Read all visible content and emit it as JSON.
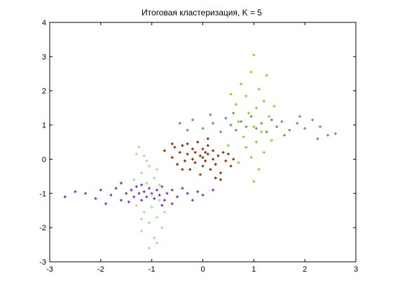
{
  "chart_data": {
    "type": "scatter",
    "title": "Итоговая кластеризация, K = 5",
    "xlabel": "",
    "ylabel": "",
    "xlim": [
      -3,
      3
    ],
    "ylim": [
      -3,
      4
    ],
    "xticks": [
      "-3",
      "-2",
      "-1",
      "0",
      "1",
      "2",
      "3"
    ],
    "yticks": [
      "-3",
      "-2",
      "-1",
      "0",
      "1",
      "2",
      "3",
      "4"
    ],
    "grid": false,
    "legend": "none",
    "marker": "diamond",
    "series": [
      {
        "color": "#8B3A0F",
        "center": [
          0,
          0
        ],
        "points": [
          [
            -0.75,
            0.25
          ],
          [
            -0.6,
            0.05
          ],
          [
            -0.55,
            0.35
          ],
          [
            -0.5,
            -0.15
          ],
          [
            -0.45,
            0.2
          ],
          [
            -0.4,
            0.4
          ],
          [
            -0.35,
            -0.05
          ],
          [
            -0.3,
            0.15
          ],
          [
            -0.3,
            0.45
          ],
          [
            -0.25,
            -0.3
          ],
          [
            -0.2,
            0.0
          ],
          [
            -0.2,
            0.3
          ],
          [
            -0.15,
            -0.1
          ],
          [
            -0.15,
            0.2
          ],
          [
            -0.1,
            0.5
          ],
          [
            -0.05,
            0.1
          ],
          [
            0.0,
            -0.2
          ],
          [
            0.0,
            0.05
          ],
          [
            0.0,
            0.3
          ],
          [
            0.05,
            -0.05
          ],
          [
            0.1,
            0.15
          ],
          [
            0.1,
            0.4
          ],
          [
            0.15,
            -0.3
          ],
          [
            0.2,
            0.0
          ],
          [
            0.2,
            0.25
          ],
          [
            0.25,
            -0.15
          ],
          [
            0.3,
            0.1
          ],
          [
            0.35,
            -0.4
          ],
          [
            0.4,
            0.2
          ],
          [
            0.45,
            -0.05
          ],
          [
            0.5,
            0.15
          ],
          [
            0.55,
            -0.2
          ],
          [
            0.6,
            0.0
          ],
          [
            -0.05,
            -0.45
          ],
          [
            0.25,
            -0.55
          ],
          [
            0.35,
            -0.6
          ],
          [
            -0.4,
            -0.3
          ],
          [
            0.1,
            0.6
          ],
          [
            -0.6,
            0.45
          ],
          [
            0.05,
            0.2
          ]
        ]
      },
      {
        "color": "#7F3FBF",
        "center": [
          -1,
          -1
        ],
        "points": [
          [
            -2.7,
            -1.1
          ],
          [
            -2.5,
            -0.95
          ],
          [
            -2.3,
            -1.0
          ],
          [
            -2.1,
            -1.15
          ],
          [
            -2.0,
            -0.9
          ],
          [
            -1.8,
            -1.05
          ],
          [
            -1.7,
            -0.85
          ],
          [
            -1.6,
            -1.2
          ],
          [
            -1.5,
            -1.0
          ],
          [
            -1.45,
            -1.25
          ],
          [
            -1.4,
            -0.9
          ],
          [
            -1.35,
            -1.1
          ],
          [
            -1.3,
            -0.8
          ],
          [
            -1.25,
            -1.0
          ],
          [
            -1.2,
            -1.2
          ],
          [
            -1.15,
            -0.95
          ],
          [
            -1.1,
            -1.1
          ],
          [
            -1.05,
            -0.85
          ],
          [
            -1.0,
            -1.0
          ],
          [
            -0.95,
            -1.15
          ],
          [
            -0.9,
            -0.9
          ],
          [
            -0.85,
            -1.05
          ],
          [
            -0.8,
            -0.8
          ],
          [
            -0.75,
            -1.2
          ],
          [
            -0.7,
            -1.0
          ],
          [
            -0.6,
            -0.9
          ],
          [
            -0.5,
            -1.1
          ],
          [
            -0.4,
            -0.85
          ],
          [
            -0.3,
            -1.0
          ],
          [
            -0.2,
            -1.2
          ],
          [
            -0.1,
            -0.95
          ],
          [
            0.0,
            -1.05
          ],
          [
            0.2,
            -0.9
          ],
          [
            -1.6,
            -0.7
          ],
          [
            -1.9,
            -1.3
          ],
          [
            -0.6,
            -1.3
          ],
          [
            -1.2,
            -0.75
          ],
          [
            -0.8,
            -1.35
          ]
        ]
      },
      {
        "color": "#A6E29A",
        "center": [
          -1,
          -1
        ],
        "points": [
          [
            -1.25,
            0.35
          ],
          [
            -1.15,
            0.1
          ],
          [
            -1.05,
            -0.2
          ],
          [
            -1.2,
            -0.4
          ],
          [
            -0.95,
            -0.55
          ],
          [
            -1.1,
            -0.7
          ],
          [
            -0.85,
            -1.2
          ],
          [
            -1.0,
            -1.4
          ],
          [
            -1.15,
            -1.55
          ],
          [
            -0.9,
            -1.7
          ],
          [
            -1.05,
            -1.85
          ],
          [
            -0.8,
            -2.0
          ],
          [
            -1.2,
            -2.1
          ],
          [
            -0.95,
            -2.3
          ],
          [
            -1.05,
            -2.6
          ],
          [
            -1.3,
            -1.35
          ],
          [
            -0.75,
            -1.55
          ],
          [
            -1.1,
            -0.05
          ],
          [
            -0.9,
            -0.3
          ],
          [
            -1.3,
            0.15
          ],
          [
            -0.85,
            -0.75
          ],
          [
            -1.0,
            -1.05
          ],
          [
            -1.2,
            -1.75
          ],
          [
            -0.9,
            -2.45
          ],
          [
            -1.35,
            -0.6
          ]
        ]
      },
      {
        "color": "#6E9A6E",
        "center": [
          1,
          1
        ],
        "points": [
          [
            -0.45,
            1.05
          ],
          [
            -0.2,
            1.15
          ],
          [
            0.0,
            0.9
          ],
          [
            0.2,
            1.05
          ],
          [
            0.35,
            0.8
          ],
          [
            0.45,
            1.2
          ],
          [
            0.55,
            1.0
          ],
          [
            0.65,
            0.85
          ],
          [
            0.75,
            1.1
          ],
          [
            0.85,
            0.95
          ],
          [
            0.95,
            1.25
          ],
          [
            1.05,
            0.9
          ],
          [
            1.15,
            1.05
          ],
          [
            1.25,
            0.8
          ],
          [
            1.35,
            1.15
          ],
          [
            1.45,
            0.95
          ],
          [
            1.55,
            1.1
          ],
          [
            1.7,
            0.85
          ],
          [
            1.85,
            1.05
          ],
          [
            2.0,
            0.9
          ],
          [
            2.15,
            1.15
          ],
          [
            2.3,
            0.95
          ],
          [
            2.45,
            0.7
          ],
          [
            2.6,
            0.75
          ],
          [
            -0.3,
            0.85
          ],
          [
            0.15,
            1.3
          ],
          [
            1.9,
            1.25
          ],
          [
            2.25,
            0.6
          ],
          [
            0.6,
            1.35
          ],
          [
            1.6,
            0.7
          ]
        ]
      },
      {
        "color": "#8CD13A",
        "center": [
          1,
          1
        ],
        "points": [
          [
            1.0,
            3.05
          ],
          [
            0.95,
            2.55
          ],
          [
            1.25,
            2.45
          ],
          [
            0.75,
            2.2
          ],
          [
            1.1,
            2.05
          ],
          [
            0.85,
            1.85
          ],
          [
            1.2,
            1.7
          ],
          [
            0.65,
            1.6
          ],
          [
            1.05,
            1.5
          ],
          [
            0.9,
            1.35
          ],
          [
            1.3,
            1.25
          ],
          [
            0.7,
            1.1
          ],
          [
            1.0,
            0.95
          ],
          [
            1.15,
            0.8
          ],
          [
            0.8,
            0.65
          ],
          [
            1.05,
            0.5
          ],
          [
            0.85,
            0.35
          ],
          [
            1.2,
            0.2
          ],
          [
            0.95,
            0.05
          ],
          [
            0.7,
            -0.1
          ],
          [
            1.1,
            -0.3
          ],
          [
            1.0,
            -0.65
          ],
          [
            0.55,
            1.9
          ],
          [
            1.4,
            1.55
          ],
          [
            0.5,
            0.4
          ],
          [
            1.35,
            0.55
          ]
        ]
      }
    ]
  }
}
